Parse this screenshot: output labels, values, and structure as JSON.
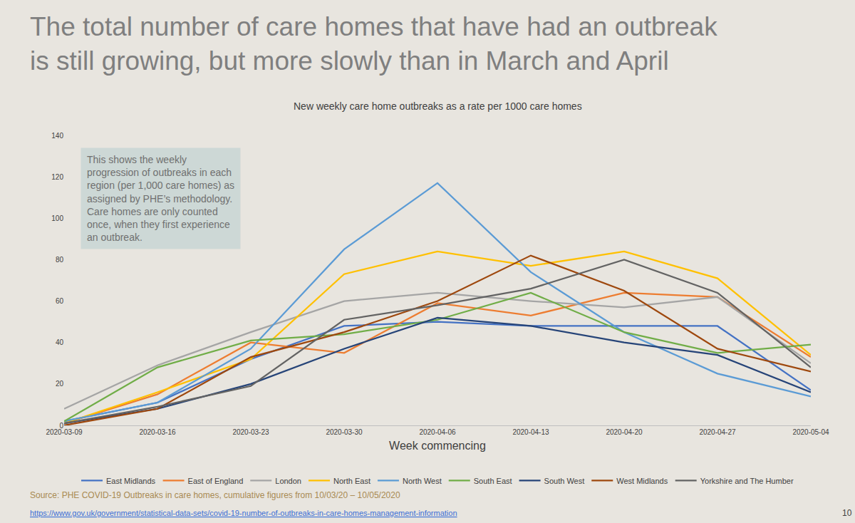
{
  "headline": "The total number of care homes that have had an outbreak\nis still growing, but more slowly than in March and April",
  "source": "Source: PHE COVID-19 Outbreaks in care homes, cumulative figures from 10/03/20 – 10/05/2020",
  "url": "https://www.gov.uk/government/statistical-data-sets/covid-19-number-of-outbreaks-in-care-homes-management-information",
  "page_number": 10,
  "chart_data": {
    "type": "line",
    "title": "New weekly care home outbreaks as a rate per 1000 care homes",
    "x_label": "Week commencing",
    "annotations": [
      "This shows the weekly\nprogression of outbreaks in each\nregion (per 1,000 care homes) as\nassigned by PHE’s methodology.\nCare homes are only counted\nonce, when they first experience\nan outbreak."
    ],
    "categories": [
      "2020-03-09",
      "2020-03-16",
      "2020-03-23",
      "2020-03-30",
      "2020-04-06",
      "2020-04-13",
      "2020-04-20",
      "2020-04-27",
      "2020-05-04"
    ],
    "series": [
      {
        "name": "East Midlands",
        "color": "#4472c4",
        "values": [
          2,
          11,
          32,
          48,
          50,
          48,
          48,
          48,
          17
        ]
      },
      {
        "name": "East of England",
        "color": "#ed7d31",
        "values": [
          1,
          15,
          40,
          35,
          59,
          53,
          64,
          62,
          33
        ]
      },
      {
        "name": "London",
        "color": "#a5a5a5",
        "values": [
          8,
          29,
          45,
          60,
          64,
          60,
          57,
          62,
          30
        ]
      },
      {
        "name": "North East",
        "color": "#ffc000",
        "values": [
          1,
          16,
          32,
          73,
          84,
          77,
          84,
          71,
          34
        ]
      },
      {
        "name": "North West",
        "color": "#5b9bd5",
        "values": [
          2,
          11,
          37,
          85,
          117,
          74,
          45,
          25,
          14
        ]
      },
      {
        "name": "South East",
        "color": "#70ad47",
        "values": [
          2,
          28,
          41,
          44,
          51,
          64,
          45,
          35,
          39
        ]
      },
      {
        "name": "South West",
        "color": "#264478",
        "values": [
          1,
          8,
          20,
          37,
          52,
          48,
          40,
          34,
          16
        ]
      },
      {
        "name": "West Midlands",
        "color": "#9e480e",
        "values": [
          0,
          8,
          33,
          45,
          60,
          82,
          65,
          37,
          26
        ]
      },
      {
        "name": "Yorkshire and The Humber",
        "color": "#636363",
        "values": [
          1,
          9,
          19,
          51,
          58,
          66,
          80,
          64,
          28
        ]
      }
    ],
    "ylim": [
      0,
      140
    ],
    "yticks": [
      0,
      20,
      40,
      60,
      80,
      100,
      120,
      140
    ],
    "grid": false,
    "legend": "bottom"
  }
}
